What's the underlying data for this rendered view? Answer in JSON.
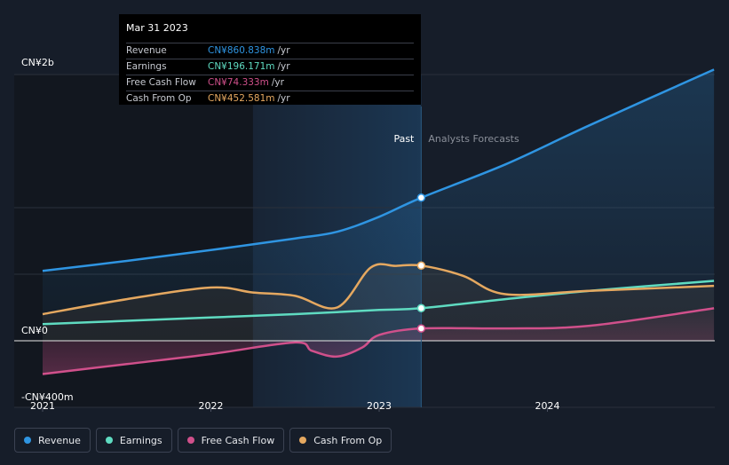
{
  "chart_data": {
    "type": "line",
    "x_axis": {
      "ticks": [
        "2021",
        "2022",
        "2023",
        "2024"
      ],
      "range": [
        2021.0,
        2024.99
      ]
    },
    "y_axis": {
      "ticks": [
        "CN¥2b",
        "CN¥0",
        "-CN¥400m"
      ],
      "range_millions": [
        -400,
        1600
      ]
    },
    "divider_date": 2023.25,
    "past_label": "Past",
    "forecast_label": "Analysts Forecasts",
    "series": [
      {
        "name": "Revenue",
        "color": "#2f95e2",
        "x": [
          2021.0,
          2021.5,
          2022.0,
          2022.5,
          2022.75,
          2023.0,
          2023.25,
          2023.75,
          2024.25,
          2024.99
        ],
        "values": [
          420,
          480,
          545,
          615,
          655,
          745,
          860,
          1060,
          1295,
          1630
        ]
      },
      {
        "name": "Earnings",
        "color": "#5fdbc1",
        "x": [
          2021.0,
          2021.5,
          2022.0,
          2022.5,
          2023.0,
          2023.25,
          2023.75,
          2024.25,
          2024.99
        ],
        "values": [
          100,
          120,
          140,
          160,
          185,
          196,
          250,
          300,
          360
        ]
      },
      {
        "name": "Free Cash Flow",
        "color": "#d0508b",
        "x": [
          2021.0,
          2021.5,
          2022.0,
          2022.5,
          2022.6,
          2022.75,
          2022.9,
          2023.0,
          2023.25,
          2023.75,
          2024.25,
          2024.99
        ],
        "values": [
          -200,
          -140,
          -80,
          -10,
          -60,
          -95,
          -40,
          35,
          74,
          74,
          90,
          195
        ]
      },
      {
        "name": "Cash From Op",
        "color": "#e5a860",
        "x": [
          2021.0,
          2021.5,
          2022.0,
          2022.25,
          2022.5,
          2022.75,
          2022.95,
          2023.1,
          2023.25,
          2023.5,
          2023.75,
          2024.25,
          2024.99
        ],
        "values": [
          160,
          250,
          320,
          290,
          270,
          200,
          440,
          450,
          452,
          390,
          280,
          300,
          330
        ]
      }
    ],
    "tooltip": {
      "date": "Mar 31 2023",
      "rows": [
        {
          "label": "Revenue",
          "value": "CN¥860.838m",
          "unit": "/yr",
          "color": "#2f95e2"
        },
        {
          "label": "Earnings",
          "value": "CN¥196.171m",
          "unit": "/yr",
          "color": "#5fdbc1"
        },
        {
          "label": "Free Cash Flow",
          "value": "CN¥74.333m",
          "unit": "/yr",
          "color": "#d0508b"
        },
        {
          "label": "Cash From Op",
          "value": "CN¥452.581m",
          "unit": "/yr",
          "color": "#e5a860"
        }
      ]
    }
  },
  "legend": [
    {
      "label": "Revenue",
      "color": "#2f95e2"
    },
    {
      "label": "Earnings",
      "color": "#5fdbc1"
    },
    {
      "label": "Free Cash Flow",
      "color": "#d0508b"
    },
    {
      "label": "Cash From Op",
      "color": "#e5a860"
    }
  ]
}
